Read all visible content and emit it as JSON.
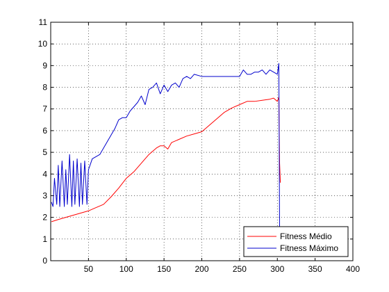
{
  "chart_data": {
    "type": "line",
    "title": "",
    "xlabel": "",
    "ylabel": "",
    "xlim": [
      0,
      400
    ],
    "ylim": [
      0,
      11
    ],
    "xticks": [
      50,
      100,
      150,
      200,
      250,
      300,
      350,
      400
    ],
    "yticks": [
      0,
      1,
      2,
      3,
      4,
      5,
      6,
      7,
      8,
      9,
      10,
      11
    ],
    "grid": true,
    "legend_position": "bottom-right",
    "series": [
      {
        "name": "Fitness Médio",
        "color": "#ff0000",
        "x": [
          1,
          10,
          20,
          30,
          40,
          50,
          60,
          70,
          80,
          90,
          100,
          110,
          120,
          130,
          140,
          145,
          150,
          155,
          160,
          170,
          180,
          190,
          200,
          210,
          220,
          230,
          240,
          250,
          260,
          270,
          280,
          290,
          295,
          300,
          302,
          303,
          304
        ],
        "y": [
          1.8,
          1.9,
          2.0,
          2.1,
          2.2,
          2.3,
          2.45,
          2.6,
          2.95,
          3.35,
          3.8,
          4.1,
          4.5,
          4.9,
          5.2,
          5.3,
          5.3,
          5.15,
          5.45,
          5.6,
          5.75,
          5.85,
          5.95,
          6.25,
          6.55,
          6.85,
          7.05,
          7.2,
          7.35,
          7.35,
          7.4,
          7.45,
          7.5,
          7.35,
          7.55,
          4.5,
          3.6
        ]
      },
      {
        "name": "Fitness Máximo",
        "color": "#0000cc",
        "x": [
          1,
          3,
          5,
          8,
          10,
          12,
          15,
          18,
          20,
          22,
          25,
          28,
          30,
          32,
          35,
          38,
          40,
          42,
          45,
          48,
          50,
          55,
          60,
          65,
          70,
          75,
          80,
          85,
          90,
          95,
          100,
          105,
          110,
          115,
          120,
          125,
          130,
          135,
          140,
          145,
          150,
          155,
          160,
          165,
          170,
          175,
          180,
          185,
          190,
          200,
          210,
          220,
          230,
          240,
          250,
          255,
          260,
          265,
          270,
          275,
          280,
          285,
          290,
          295,
          300,
          302,
          303,
          304
        ],
        "y": [
          2.7,
          2.5,
          3.8,
          2.6,
          4.4,
          2.5,
          4.6,
          2.5,
          4.2,
          2.6,
          4.9,
          2.5,
          4.6,
          2.6,
          4.7,
          2.5,
          4.5,
          2.6,
          4.6,
          2.6,
          4.2,
          4.7,
          4.8,
          4.9,
          5.2,
          5.5,
          5.8,
          6.1,
          6.5,
          6.6,
          6.6,
          6.9,
          7.1,
          7.3,
          7.6,
          7.2,
          7.9,
          8.0,
          8.2,
          7.7,
          8.1,
          7.8,
          8.1,
          8.2,
          8.0,
          8.4,
          8.5,
          8.4,
          8.6,
          8.5,
          8.5,
          8.5,
          8.5,
          8.5,
          8.5,
          8.8,
          8.6,
          8.6,
          8.7,
          8.7,
          8.8,
          8.6,
          8.8,
          8.7,
          8.6,
          9.1,
          1.2,
          1.3
        ]
      }
    ]
  }
}
